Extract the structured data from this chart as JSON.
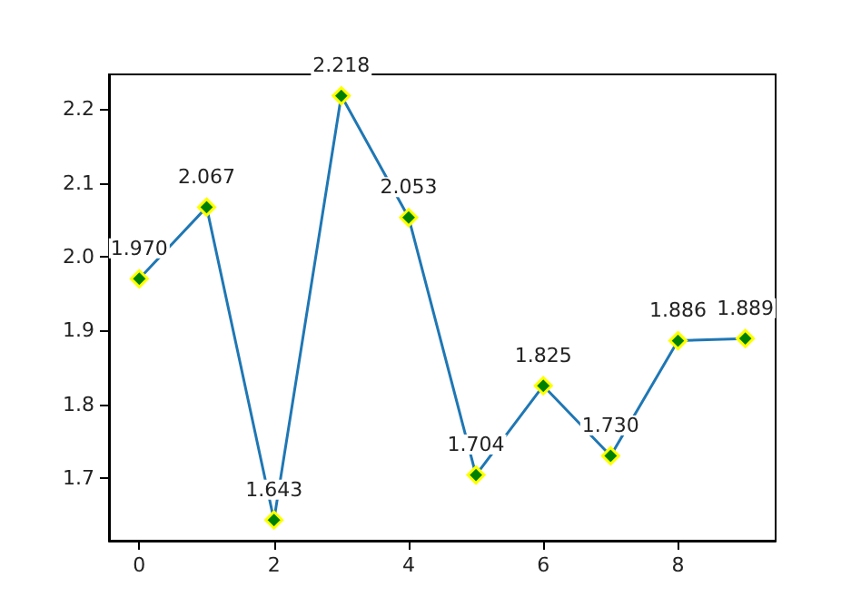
{
  "chart_data": {
    "type": "line",
    "x": [
      0,
      1,
      2,
      3,
      4,
      5,
      6,
      7,
      8,
      9
    ],
    "series": [
      {
        "color": "#1f77b4",
        "values": [
          1.97,
          2.067,
          1.643,
          2.218,
          2.053,
          1.704,
          1.825,
          1.73,
          1.886,
          1.889
        ],
        "value_labels": [
          "1.970",
          "2.067",
          "1.643",
          "2.218",
          "2.053",
          "1.704",
          "1.825",
          "1.730",
          "1.886",
          "1.889"
        ]
      }
    ],
    "xlim": [
      -0.45,
      9.45
    ],
    "ylim": [
      1.615,
      2.247
    ],
    "xticks": [
      0,
      2,
      4,
      6,
      8
    ],
    "yticks": [
      1.7,
      1.8,
      1.9,
      {
        "value": 2,
        "label": "2.0"
      },
      2.1,
      2.2
    ],
    "marker": "diamond",
    "line_style": "solid",
    "grid": false
  }
}
